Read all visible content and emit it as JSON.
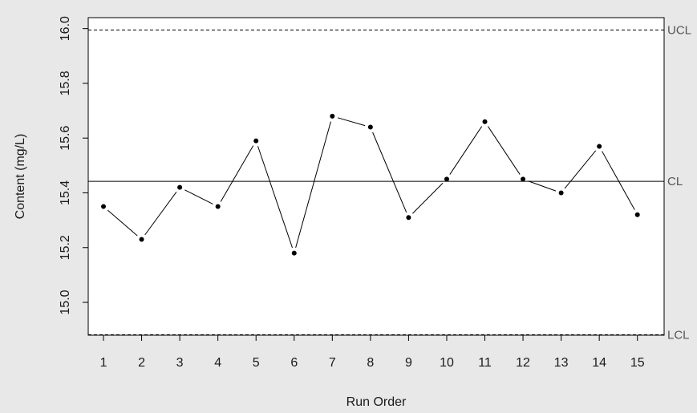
{
  "chart_data": {
    "type": "line",
    "title": "",
    "xlabel": "Run Order",
    "ylabel": "Content (mg/L)",
    "x": [
      1,
      2,
      3,
      4,
      5,
      6,
      7,
      8,
      9,
      10,
      11,
      12,
      13,
      14,
      15
    ],
    "series": [
      {
        "values": [
          15.35,
          15.23,
          15.42,
          15.35,
          15.59,
          15.18,
          15.68,
          15.64,
          15.31,
          15.45,
          15.66,
          15.45,
          15.4,
          15.57,
          15.32
        ]
      }
    ],
    "xlim": [
      0.6,
      15.7
    ],
    "ylim": [
      14.88,
      16.04
    ],
    "yticks": [
      "15.0",
      "15.2",
      "15.4",
      "15.6",
      "15.8",
      "16.0"
    ],
    "xticks": [
      "1",
      "2",
      "3",
      "4",
      "5",
      "6",
      "7",
      "8",
      "9",
      "10",
      "11",
      "12",
      "13",
      "14",
      "15"
    ],
    "control_limits": {
      "ucl": {
        "label": "UCL",
        "value": 15.995
      },
      "cl": {
        "label": "CL",
        "value": 15.442
      },
      "lcl": {
        "label": "LCL",
        "value": 14.882
      }
    },
    "grid": false,
    "colors": {
      "background": "#e8e8e8",
      "plot_background": "#ffffff",
      "line": "#000000",
      "limit_label": "#555555"
    }
  }
}
